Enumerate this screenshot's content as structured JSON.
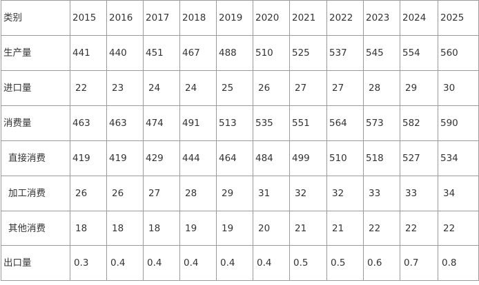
{
  "table": {
    "headers": [
      "类别",
      "2015",
      "2016",
      "2017",
      "2018",
      "2019",
      "2020",
      "2021",
      "2022",
      "2023",
      "2024",
      "2025"
    ],
    "rows": [
      {
        "label": "生产量",
        "sub": false,
        "values": [
          "441",
          "440",
          "451",
          "467",
          "488",
          "510",
          "525",
          "537",
          "545",
          "554",
          "560"
        ]
      },
      {
        "label": "进口量",
        "sub": false,
        "values": [
          "22",
          "23",
          "24",
          "24",
          "25",
          "26",
          "27",
          "27",
          "28",
          "29",
          "30"
        ]
      },
      {
        "label": "消费量",
        "sub": false,
        "values": [
          "463",
          "463",
          "474",
          "491",
          "513",
          "535",
          "551",
          "564",
          "573",
          "582",
          "590"
        ]
      },
      {
        "label": "直接消费",
        "sub": true,
        "values": [
          "419",
          "419",
          "429",
          "444",
          "464",
          "484",
          "499",
          "510",
          "518",
          "527",
          "534"
        ]
      },
      {
        "label": "加工消费",
        "sub": true,
        "values": [
          "26",
          "26",
          "27",
          "28",
          "29",
          "31",
          "32",
          "32",
          "33",
          "33",
          "34"
        ]
      },
      {
        "label": "其他消费",
        "sub": true,
        "values": [
          "18",
          "18",
          "18",
          "19",
          "19",
          "20",
          "21",
          "21",
          "22",
          "22",
          "22"
        ]
      },
      {
        "label": "出口量",
        "sub": false,
        "values": [
          "0.3",
          "0.4",
          "0.4",
          "0.4",
          "0.4",
          "0.4",
          "0.5",
          "0.5",
          "0.6",
          "0.7",
          "0.8"
        ]
      }
    ]
  }
}
